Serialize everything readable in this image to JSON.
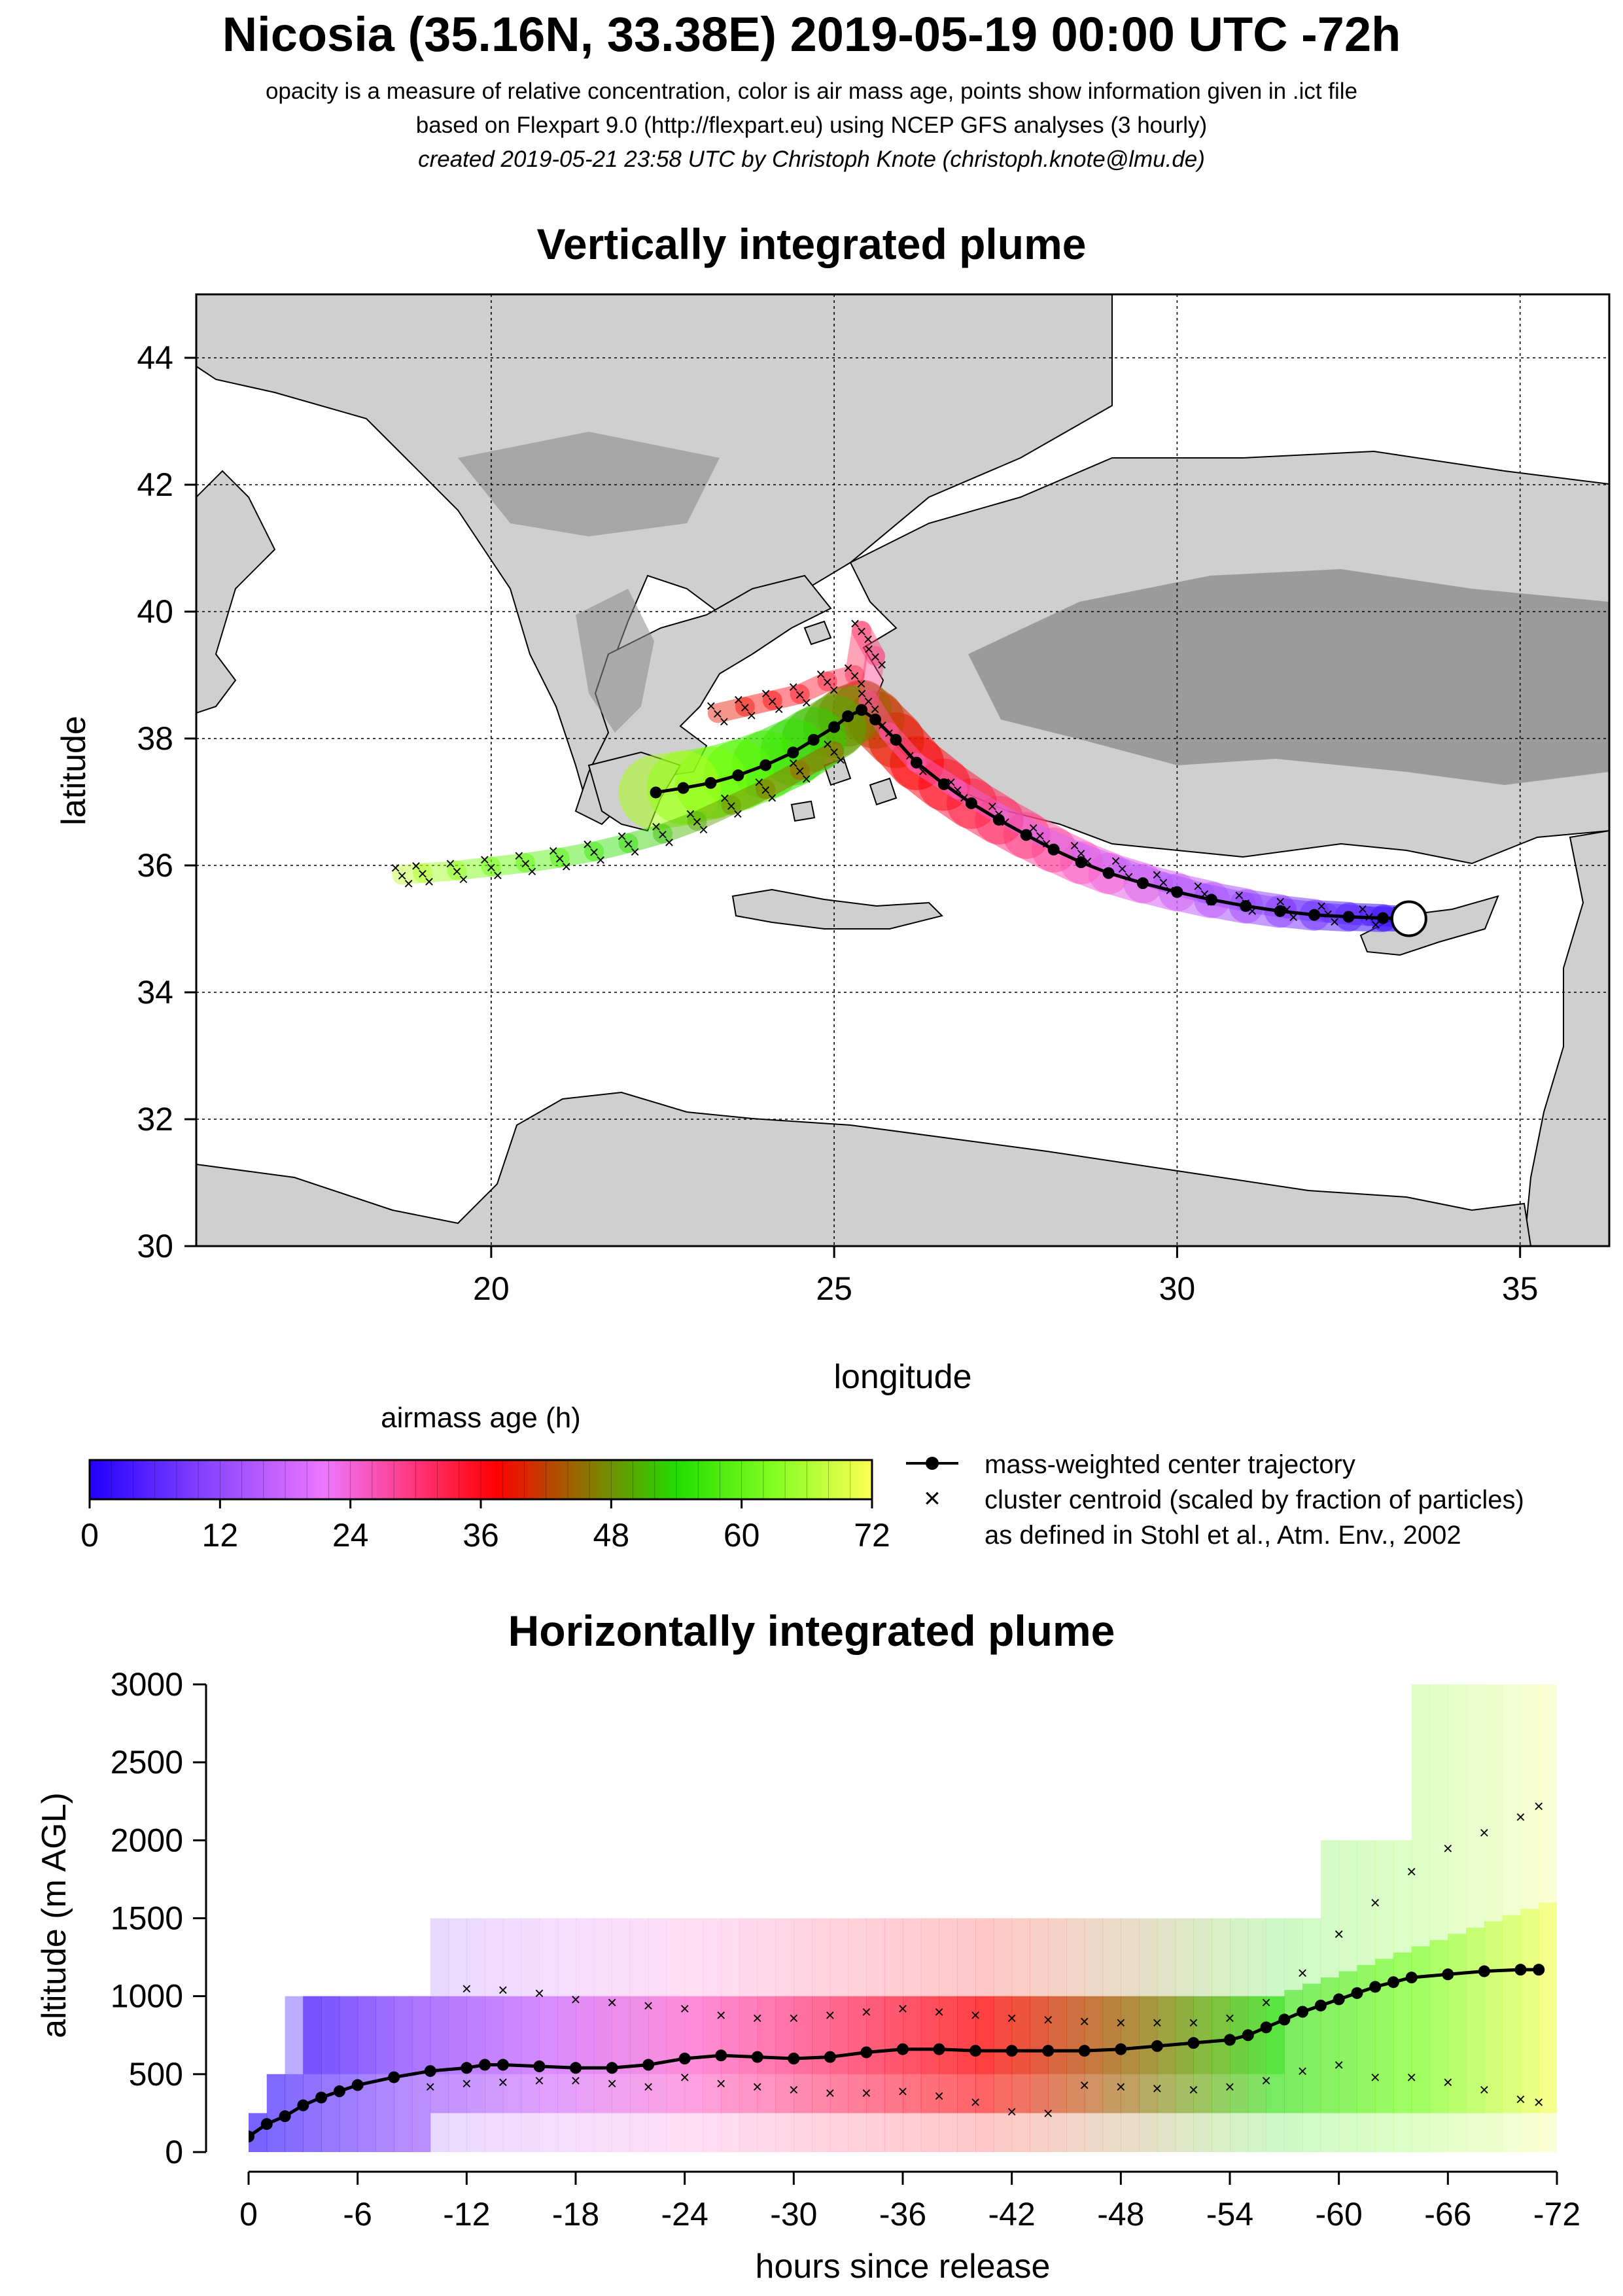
{
  "header": {
    "title": "Nicosia (35.16N, 33.38E) 2019-05-19 00:00 UTC -72h",
    "line1": "opacity is a measure of relative concentration, color is air mass age, points show information given in .ict file",
    "line2": "based on Flexpart 9.0 (http://flexpart.eu) using NCEP GFS analyses (3 hourly)",
    "line3": "created 2019-05-21 23:58 UTC by Christoph Knote (christoph.knote@lmu.de)"
  },
  "colors": {
    "age_scale": [
      "#2200ff",
      "#8844ff",
      "#cc66ff",
      "#ff66cc",
      "#ff3366",
      "#ff0000",
      "#996600",
      "#22dd00",
      "#66ff00",
      "#ffff44"
    ],
    "land": "#cfcfcf",
    "mountains": "#8a8a8a",
    "sea": "#ffffff"
  },
  "chart_data": [
    {
      "type": "scatter",
      "title": "Vertically integrated plume",
      "xlabel": "longitude",
      "ylabel": "latitude",
      "xlim": [
        15.7,
        36.3
      ],
      "ylim": [
        30,
        45
      ],
      "xticks": [
        "20",
        "25",
        "30",
        "35"
      ],
      "xtick_values": [
        20,
        25,
        30,
        35
      ],
      "yticks": [
        "30",
        "32",
        "34",
        "36",
        "38",
        "40",
        "42",
        "44"
      ],
      "ytick_values": [
        30,
        32,
        34,
        36,
        38,
        40,
        42,
        44
      ],
      "grid": true,
      "release_point": {
        "lon": 33.38,
        "lat": 35.16
      },
      "series": [
        {
          "name": "mass-weighted center trajectory",
          "lon": [
            33.38,
            33.0,
            32.5,
            32.0,
            31.5,
            31.0,
            30.5,
            30.0,
            29.5,
            29.0,
            28.6,
            28.2,
            27.8,
            27.4,
            27.0,
            26.6,
            26.2,
            25.9,
            25.6,
            25.4,
            25.2,
            25.0,
            24.7,
            24.4,
            24.0,
            23.6,
            23.2,
            22.8,
            22.4
          ],
          "lat": [
            35.16,
            35.17,
            35.19,
            35.22,
            35.28,
            35.36,
            35.46,
            35.58,
            35.72,
            35.88,
            36.05,
            36.25,
            36.48,
            36.72,
            36.98,
            37.28,
            37.62,
            37.98,
            38.3,
            38.45,
            38.35,
            38.18,
            37.98,
            37.78,
            37.58,
            37.42,
            37.3,
            37.22,
            37.15
          ],
          "age_h": [
            0,
            2.5,
            5,
            7.5,
            10,
            12.5,
            15,
            17.5,
            20,
            22.5,
            25,
            27.5,
            30,
            32.5,
            35,
            37.5,
            40,
            42.5,
            45,
            47.5,
            50,
            52.5,
            55,
            57.5,
            60,
            62.5,
            65,
            67.5,
            70
          ]
        },
        {
          "name": "cluster centroid (scaled by fraction of particles)",
          "lon": [
            33.3,
            32.8,
            32.2,
            31.6,
            31.0,
            30.4,
            29.8,
            29.2,
            28.6,
            28.0,
            27.4,
            26.8,
            26.2,
            25.8,
            25.5,
            25.6,
            25.4,
            25.3,
            24.9,
            24.5,
            24.1,
            23.7,
            23.3,
            25.0,
            24.5,
            24.0,
            23.5,
            23.0,
            22.5,
            22.0,
            21.5,
            21.0,
            20.5,
            20.0,
            19.5,
            19.0,
            18.7
          ],
          "lat": [
            35.18,
            35.2,
            35.25,
            35.32,
            35.42,
            35.56,
            35.74,
            35.96,
            36.2,
            36.48,
            36.82,
            37.2,
            37.62,
            38.1,
            38.6,
            39.3,
            39.7,
            39.0,
            38.9,
            38.7,
            38.6,
            38.5,
            38.4,
            37.8,
            37.5,
            37.2,
            36.95,
            36.7,
            36.5,
            36.35,
            36.22,
            36.12,
            36.04,
            35.98,
            35.92,
            35.88,
            35.85
          ]
        }
      ]
    },
    {
      "type": "line",
      "title": "Horizontally integrated plume",
      "xlabel": "hours since release",
      "ylabel": "altitude (m AGL)",
      "xlim": [
        0,
        -72
      ],
      "ylim": [
        0,
        3000
      ],
      "xticks": [
        "0",
        "-6",
        "-12",
        "-18",
        "-24",
        "-30",
        "-36",
        "-42",
        "-48",
        "-54",
        "-60",
        "-66",
        "-72"
      ],
      "xtick_values": [
        0,
        -6,
        -12,
        -18,
        -24,
        -30,
        -36,
        -42,
        -48,
        -54,
        -60,
        -66,
        -72
      ],
      "yticks": [
        "0",
        "500",
        "1000",
        "1500",
        "2000",
        "2500",
        "3000"
      ],
      "ytick_values": [
        0,
        500,
        1000,
        1500,
        2000,
        2500,
        3000
      ],
      "series": [
        {
          "name": "mass-weighted center trajectory",
          "hours": [
            0,
            -1,
            -2,
            -3,
            -4,
            -5,
            -6,
            -8,
            -10,
            -12,
            -13,
            -14,
            -16,
            -18,
            -20,
            -22,
            -24,
            -26,
            -28,
            -30,
            -32,
            -34,
            -36,
            -38,
            -40,
            -42,
            -44,
            -46,
            -48,
            -50,
            -52,
            -54,
            -55,
            -56,
            -57,
            -58,
            -59,
            -60,
            -61,
            -62,
            -63,
            -64,
            -66,
            -68,
            -70,
            -71
          ],
          "altitude": [
            100,
            180,
            230,
            300,
            350,
            390,
            430,
            480,
            520,
            540,
            560,
            560,
            550,
            540,
            540,
            560,
            600,
            620,
            610,
            600,
            610,
            640,
            660,
            660,
            650,
            650,
            650,
            650,
            660,
            680,
            700,
            720,
            750,
            800,
            850,
            900,
            940,
            980,
            1020,
            1060,
            1090,
            1120,
            1140,
            1160,
            1170,
            1170
          ]
        },
        {
          "name": "cluster centroid upper",
          "hours": [
            -12,
            -14,
            -16,
            -18,
            -20,
            -22,
            -24,
            -26,
            -28,
            -30,
            -32,
            -34,
            -36,
            -38,
            -40,
            -42,
            -44,
            -46,
            -48,
            -50,
            -52,
            -54,
            -56,
            -58,
            -60,
            -62,
            -64,
            -66,
            -68,
            -70,
            -71
          ],
          "altitude": [
            1050,
            1040,
            1020,
            980,
            960,
            940,
            920,
            880,
            860,
            860,
            880,
            900,
            920,
            900,
            880,
            860,
            850,
            840,
            830,
            830,
            830,
            860,
            960,
            1150,
            1400,
            1600,
            1800,
            1950,
            2050,
            2150,
            2220
          ]
        },
        {
          "name": "cluster centroid lower",
          "hours": [
            -10,
            -12,
            -14,
            -16,
            -18,
            -20,
            -22,
            -24,
            -26,
            -28,
            -30,
            -32,
            -34,
            -36,
            -38,
            -40,
            -42,
            -44,
            -46,
            -48,
            -50,
            -52,
            -54,
            -56,
            -58,
            -60,
            -62,
            -64,
            -66,
            -68,
            -70,
            -71
          ],
          "altitude": [
            420,
            440,
            450,
            460,
            460,
            440,
            420,
            480,
            440,
            420,
            400,
            380,
            380,
            390,
            360,
            320,
            260,
            250,
            430,
            420,
            410,
            400,
            420,
            460,
            520,
            560,
            480,
            480,
            450,
            400,
            340,
            320
          ]
        }
      ]
    }
  ],
  "legend": {
    "colorbar_title": "airmass age (h)",
    "colorbar_ticks": [
      "0",
      "12",
      "24",
      "36",
      "48",
      "60",
      "72"
    ],
    "colorbar_values": [
      0,
      12,
      24,
      36,
      48,
      60,
      72
    ],
    "line_label": "mass-weighted center trajectory",
    "cross_label": "cluster centroid (scaled by fraction of particles)",
    "cross_label2": "as defined in Stohl et al., Atm. Env., 2002"
  }
}
